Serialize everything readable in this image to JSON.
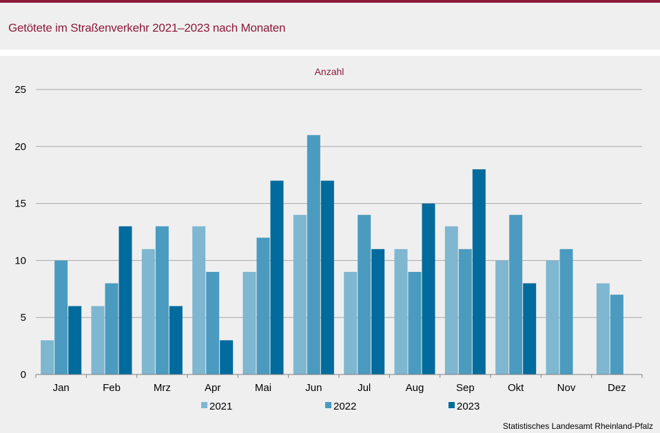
{
  "header": {
    "title": "Getötete im Straßenverkehr 2021–2023 nach Monaten"
  },
  "footer": {
    "source": "Statistisches Landesamt Rheinland-Pfalz"
  },
  "chart_data": {
    "type": "bar",
    "unit_label": "Anzahl",
    "categories": [
      "Jan",
      "Feb",
      "Mrz",
      "Apr",
      "Mai",
      "Jun",
      "Jul",
      "Aug",
      "Sep",
      "Okt",
      "Nov",
      "Dez"
    ],
    "series": [
      {
        "name": "2021",
        "color": "#7fb6d0",
        "values": [
          3,
          6,
          11,
          13,
          9,
          14,
          9,
          11,
          13,
          10,
          10,
          8
        ]
      },
      {
        "name": "2022",
        "color": "#4a9bbf",
        "values": [
          10,
          8,
          13,
          9,
          12,
          21,
          14,
          9,
          11,
          14,
          11,
          7
        ]
      },
      {
        "name": "2023",
        "color": "#006b9c",
        "values": [
          6,
          13,
          6,
          3,
          17,
          17,
          11,
          15,
          18,
          8,
          null,
          null
        ]
      }
    ],
    "yticks": [
      0,
      5,
      10,
      15,
      20,
      25
    ],
    "ylim": [
      0,
      25
    ],
    "grid": true,
    "legend_position": "bottom-center",
    "xlabel": "",
    "ylabel": ""
  }
}
